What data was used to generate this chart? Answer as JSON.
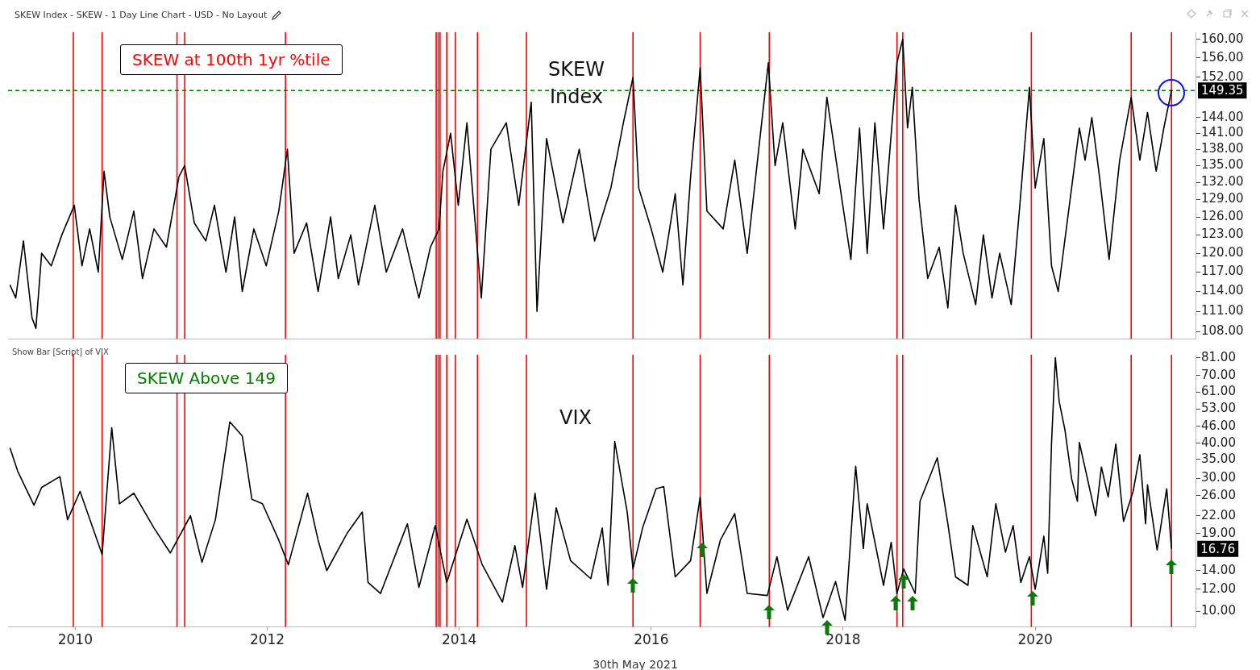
{
  "chart_data": [
    {
      "type": "line",
      "title": "SKEW Index - SKEW - 1 Day Line Chart - USD - No Layout",
      "annotations": [
        "SKEW at 100th 1yr %tile"
      ],
      "series": [
        {
          "name": "SKEW Index",
          "color": "#000000",
          "x": [
            2009.32,
            2009.38,
            2009.46,
            2009.55,
            2009.59,
            2009.65,
            2009.75,
            2009.86,
            2009.99,
            2010.07,
            2010.15,
            2010.24,
            2010.3,
            2010.36,
            2010.49,
            2010.61,
            2010.7,
            2010.82,
            2010.95,
            2011.08,
            2011.14,
            2011.24,
            2011.36,
            2011.45,
            2011.57,
            2011.66,
            2011.74,
            2011.86,
            2011.99,
            2012.12,
            2012.21,
            2012.28,
            2012.41,
            2012.53,
            2012.66,
            2012.74,
            2012.87,
            2012.95,
            2013.12,
            2013.24,
            2013.41,
            2013.58,
            2013.7,
            2013.79,
            2013.83,
            2013.91,
            2013.99,
            2014.08,
            2014.23,
            2014.33,
            2014.49,
            2014.62,
            2014.75,
            2014.81,
            2014.91,
            2015.08,
            2015.25,
            2015.41,
            2015.58,
            2015.71,
            2015.81,
            2015.87,
            2016.0,
            2016.12,
            2016.25,
            2016.33,
            2016.41,
            2016.51,
            2016.58,
            2016.75,
            2016.87,
            2017.0,
            2017.12,
            2017.22,
            2017.29,
            2017.37,
            2017.5,
            2017.58,
            2017.75,
            2017.83,
            2017.96,
            2018.08,
            2018.17,
            2018.25,
            2018.33,
            2018.42,
            2018.56,
            2018.62,
            2018.67,
            2018.72,
            2018.79,
            2018.88,
            2019.0,
            2019.09,
            2019.17,
            2019.25,
            2019.38,
            2019.46,
            2019.55,
            2019.63,
            2019.75,
            2019.84,
            2019.94,
            2020.0,
            2020.09,
            2020.17,
            2020.24,
            2020.34,
            2020.46,
            2020.52,
            2020.59,
            2020.67,
            2020.77,
            2020.88,
            2021.0,
            2021.09,
            2021.17,
            2021.26,
            2021.34,
            2021.42
          ],
          "values": [
            115,
            113,
            122,
            110,
            108.5,
            120,
            118,
            123,
            128,
            118,
            124,
            117,
            134,
            126,
            119,
            127,
            116,
            124,
            121,
            133,
            135,
            125,
            122,
            128,
            117,
            126,
            114,
            124,
            118,
            127,
            138,
            120,
            125,
            114,
            126,
            116,
            123,
            115,
            128,
            117,
            124,
            113,
            121,
            124,
            134,
            141,
            128,
            143,
            113,
            138,
            143,
            128,
            147,
            111,
            140,
            125,
            138,
            122,
            131,
            143,
            152,
            131,
            124,
            117,
            130,
            115,
            133,
            154,
            127,
            124,
            136,
            120,
            138,
            155,
            135,
            143,
            124,
            138,
            130,
            148,
            132,
            119,
            142,
            120,
            143,
            124,
            155,
            160,
            142,
            150,
            129,
            116,
            121,
            111.5,
            128,
            120,
            112,
            123,
            113,
            120,
            112,
            128,
            150,
            131,
            140,
            118,
            114,
            126,
            142,
            136,
            144,
            133,
            119,
            136,
            148,
            136,
            145,
            134,
            142,
            149.35
          ]
        }
      ],
      "xlim": [
        2009.3,
        2021.67
      ],
      "ylim": [
        107,
        161.5
      ],
      "yticks": [
        {
          "value": 108,
          "label": "108.00"
        },
        {
          "value": 111,
          "label": "111.00"
        },
        {
          "value": 114,
          "label": "114.00"
        },
        {
          "value": 117,
          "label": "117.00"
        },
        {
          "value": 120,
          "label": "120.00"
        },
        {
          "value": 123,
          "label": "123.00"
        },
        {
          "value": 126,
          "label": "126.00"
        },
        {
          "value": 129,
          "label": "129.00"
        },
        {
          "value": 132,
          "label": "132.00"
        },
        {
          "value": 135,
          "label": "135.00"
        },
        {
          "value": 138,
          "label": "138.00"
        },
        {
          "value": 141,
          "label": "141.00"
        },
        {
          "value": 144,
          "label": "144.00"
        },
        {
          "value": 152,
          "label": "152.00"
        },
        {
          "value": 156,
          "label": "156.00"
        },
        {
          "value": 160,
          "label": "160.00"
        }
      ],
      "log": true,
      "tick_labels": "y",
      "ref_lines": [
        {
          "axis": "y",
          "value": 149.35,
          "label": "149.35",
          "color": "#008000",
          "line_style": "dashed"
        },
        {
          "axis": "x",
          "value": 2009.98,
          "color": "#ff0000"
        },
        {
          "axis": "x",
          "value": 2010.28,
          "color": "#ff0000"
        },
        {
          "axis": "x",
          "value": 2011.06,
          "color": "#ff0000"
        },
        {
          "axis": "x",
          "value": 2011.14,
          "color": "#ff0000"
        },
        {
          "axis": "x",
          "value": 2012.19,
          "color": "#ff0000"
        },
        {
          "axis": "x",
          "value": 2013.76,
          "color": "#ff0000"
        },
        {
          "axis": "x",
          "value": 2013.78,
          "color": "#ff0000"
        },
        {
          "axis": "x",
          "value": 2013.8,
          "color": "#ff0000"
        },
        {
          "axis": "x",
          "value": 2013.87,
          "color": "#ff0000"
        },
        {
          "axis": "x",
          "value": 2013.96,
          "color": "#ff0000"
        },
        {
          "axis": "x",
          "value": 2014.19,
          "color": "#ff0000"
        },
        {
          "axis": "x",
          "value": 2014.7,
          "color": "#ff0000"
        },
        {
          "axis": "x",
          "value": 2015.81,
          "color": "#ff0000"
        },
        {
          "axis": "x",
          "value": 2016.51,
          "color": "#ff0000"
        },
        {
          "axis": "x",
          "value": 2017.23,
          "color": "#ff0000"
        },
        {
          "axis": "x",
          "value": 2018.56,
          "color": "#ff0000"
        },
        {
          "axis": "x",
          "value": 2018.62,
          "color": "#ff0000"
        },
        {
          "axis": "x",
          "value": 2019.96,
          "color": "#ff0000"
        },
        {
          "axis": "x",
          "value": 2021.0,
          "color": "#ff0000"
        },
        {
          "axis": "x",
          "value": 2021.42,
          "color": "#ff0000"
        }
      ]
    },
    {
      "type": "line",
      "annotations": [
        "Show Bar [Script] of VIX",
        "SKEW Above 149",
        {
          "text": "16.76",
          "x": 2021.42,
          "y": 16.76
        },
        "30th May 2021"
      ],
      "series": [
        {
          "name": "VIX",
          "color": "#000000",
          "x": [
            2009.32,
            2009.4,
            2009.57,
            2009.65,
            2009.84,
            2009.92,
            2010.05,
            2010.28,
            2010.38,
            2010.46,
            2010.61,
            2010.82,
            2010.99,
            2011.2,
            2011.32,
            2011.46,
            2011.61,
            2011.74,
            2011.84,
            2011.95,
            2012.12,
            2012.22,
            2012.42,
            2012.53,
            2012.62,
            2012.83,
            2012.99,
            2013.05,
            2013.18,
            2013.46,
            2013.58,
            2013.75,
            2013.87,
            2014.08,
            2014.24,
            2014.45,
            2014.58,
            2014.66,
            2014.79,
            2014.91,
            2015.01,
            2015.16,
            2015.37,
            2015.49,
            2015.55,
            2015.62,
            2015.75,
            2015.81,
            2015.91,
            2016.05,
            2016.13,
            2016.25,
            2016.41,
            2016.51,
            2016.58,
            2016.72,
            2016.87,
            2017.0,
            2017.21,
            2017.31,
            2017.42,
            2017.64,
            2017.79,
            2017.92,
            2018.02,
            2018.13,
            2018.21,
            2018.25,
            2018.42,
            2018.5,
            2018.56,
            2018.63,
            2018.75,
            2018.8,
            2018.98,
            2019.09,
            2019.17,
            2019.3,
            2019.35,
            2019.5,
            2019.59,
            2019.69,
            2019.77,
            2019.85,
            2019.94,
            2020.0,
            2020.09,
            2020.13,
            2020.17,
            2020.21,
            2020.25,
            2020.31,
            2020.38,
            2020.44,
            2020.46,
            2020.63,
            2020.69,
            2020.76,
            2020.84,
            2020.92,
            2021.02,
            2021.09,
            2021.15,
            2021.17,
            2021.27,
            2021.37,
            2021.42
          ],
          "values": [
            38.5,
            31.8,
            24,
            27.8,
            30.4,
            21.3,
            26.9,
            16,
            45.5,
            24.3,
            26.5,
            19.9,
            16.2,
            22,
            15,
            21.3,
            47.7,
            42.5,
            25.2,
            24.3,
            18,
            14.7,
            26.5,
            18,
            14,
            19,
            22.7,
            12.7,
            11.6,
            20.6,
            12.2,
            20.3,
            12.7,
            21.4,
            14.7,
            10.8,
            17.2,
            12.2,
            26.5,
            12,
            23.5,
            15.2,
            13.1,
            19.9,
            12.4,
            40.6,
            22.7,
            14.2,
            19.9,
            27.5,
            28,
            13.3,
            15.2,
            25.7,
            11.6,
            18,
            22.4,
            11.6,
            11.4,
            15.7,
            10.1,
            15.7,
            9.5,
            12.8,
            9.3,
            33.1,
            16.8,
            24.3,
            12.4,
            17.7,
            11.6,
            14.2,
            11.6,
            24.8,
            35.5,
            20.6,
            13.3,
            12.4,
            20.3,
            13.3,
            24.3,
            16.3,
            20.3,
            12.7,
            15.7,
            12,
            18.6,
            13.7,
            39.8,
            81,
            56.4,
            44.6,
            29.8,
            24.8,
            40.3,
            22,
            32.9,
            25.7,
            39.8,
            21,
            26.9,
            36.4,
            20.6,
            28.4,
            16.6,
            27.5,
            16.76
          ]
        }
      ],
      "xlim": [
        2009.3,
        2021.67
      ],
      "xticks": [
        2010,
        2012,
        2014,
        2016,
        2018,
        2020
      ],
      "ylim": [
        8.8,
        83
      ],
      "yticks": [
        {
          "value": 10,
          "label": "10.00"
        },
        {
          "value": 12,
          "label": "12.00"
        },
        {
          "value": 14,
          "label": "14.00"
        },
        {
          "value": 19,
          "label": "19.00"
        },
        {
          "value": 22,
          "label": "22.00"
        },
        {
          "value": 26,
          "label": "26.00"
        },
        {
          "value": 30,
          "label": "30.00"
        },
        {
          "value": 35,
          "label": "35.00"
        },
        {
          "value": 40,
          "label": "40.00"
        },
        {
          "value": 46,
          "label": "46.00"
        },
        {
          "value": 53,
          "label": "53.00"
        },
        {
          "value": 61,
          "label": "61.00"
        },
        {
          "value": 70,
          "label": "70.00"
        },
        {
          "value": 81,
          "label": "81.00"
        }
      ],
      "log": true,
      "ref_lines": [
        {
          "axis": "x",
          "value": 2009.98,
          "color": "#ff0000"
        },
        {
          "axis": "x",
          "value": 2010.28,
          "color": "#ff0000"
        },
        {
          "axis": "x",
          "value": 2011.06,
          "color": "#ff0000"
        },
        {
          "axis": "x",
          "value": 2011.14,
          "color": "#ff0000"
        },
        {
          "axis": "x",
          "value": 2012.19,
          "color": "#ff0000"
        },
        {
          "axis": "x",
          "value": 2013.76,
          "color": "#ff0000"
        },
        {
          "axis": "x",
          "value": 2013.78,
          "color": "#ff0000"
        },
        {
          "axis": "x",
          "value": 2013.8,
          "color": "#ff0000"
        },
        {
          "axis": "x",
          "value": 2013.87,
          "color": "#ff0000"
        },
        {
          "axis": "x",
          "value": 2013.96,
          "color": "#ff0000"
        },
        {
          "axis": "x",
          "value": 2014.19,
          "color": "#ff0000"
        },
        {
          "axis": "x",
          "value": 2014.7,
          "color": "#ff0000"
        },
        {
          "axis": "x",
          "value": 2015.81,
          "color": "#ff0000"
        },
        {
          "axis": "x",
          "value": 2016.51,
          "color": "#ff0000"
        },
        {
          "axis": "x",
          "value": 2017.23,
          "color": "#ff0000"
        },
        {
          "axis": "x",
          "value": 2018.56,
          "color": "#ff0000"
        },
        {
          "axis": "x",
          "value": 2018.62,
          "color": "#ff0000"
        },
        {
          "axis": "x",
          "value": 2019.96,
          "color": "#ff0000"
        },
        {
          "axis": "x",
          "value": 2021.0,
          "color": "#ff0000"
        },
        {
          "axis": "x",
          "value": 2021.42,
          "color": "#ff0000"
        }
      ]
    }
  ]
}
